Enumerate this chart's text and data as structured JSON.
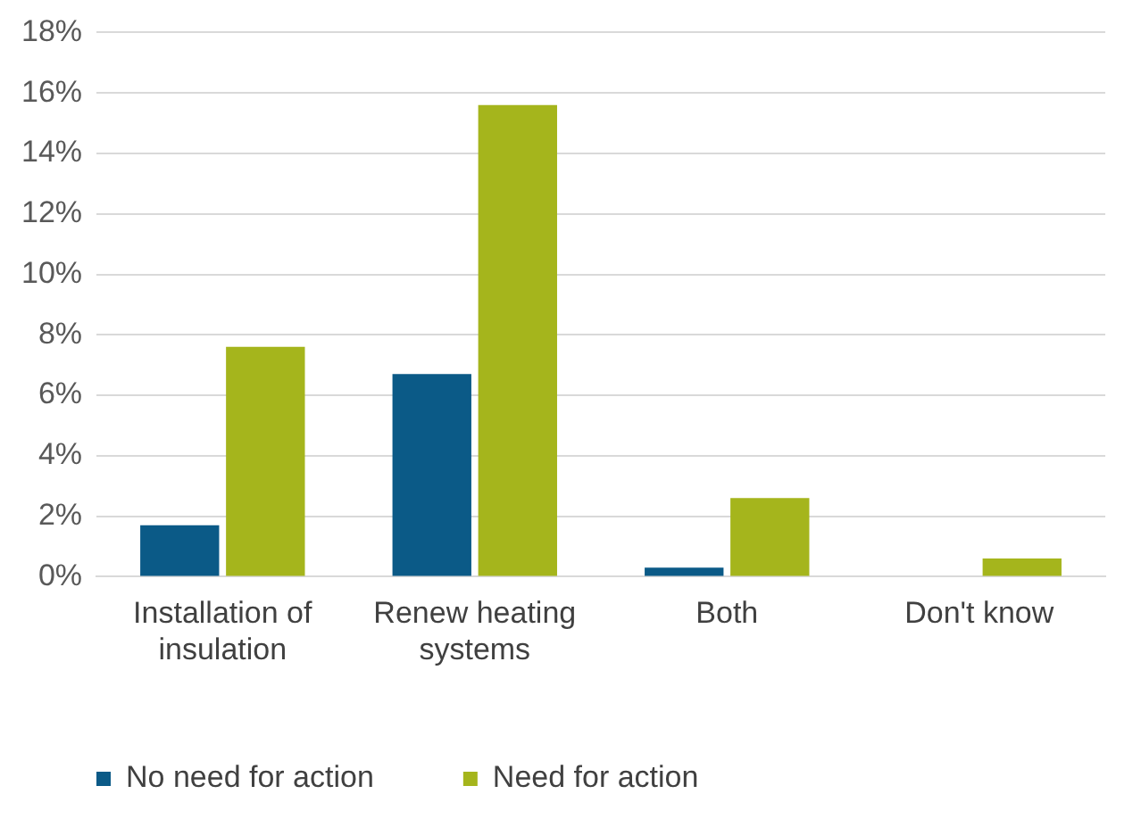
{
  "chart_data": {
    "type": "bar",
    "categories": [
      "Installation of insulation",
      "Renew heating systems",
      "Both",
      "Don't know"
    ],
    "series": [
      {
        "name": "No need for action",
        "color": "#0b5a87",
        "values": [
          1.7,
          6.7,
          0.3,
          0
        ]
      },
      {
        "name": "Need for action",
        "color": "#a5b51c",
        "values": [
          7.6,
          15.6,
          2.6,
          0.6
        ]
      }
    ],
    "ylim": [
      0,
      18
    ],
    "yticks": [
      {
        "value": 0,
        "label": "0%"
      },
      {
        "value": 2,
        "label": "2%"
      },
      {
        "value": 4,
        "label": "4%"
      },
      {
        "value": 6,
        "label": "6%"
      },
      {
        "value": 8,
        "label": "8%"
      },
      {
        "value": 10,
        "label": "10%"
      },
      {
        "value": 12,
        "label": "12%"
      },
      {
        "value": 14,
        "label": "14%"
      },
      {
        "value": 16,
        "label": "16%"
      },
      {
        "value": 18,
        "label": "18%"
      }
    ],
    "grid": "y",
    "legend": "bottom",
    "marker": "square"
  }
}
